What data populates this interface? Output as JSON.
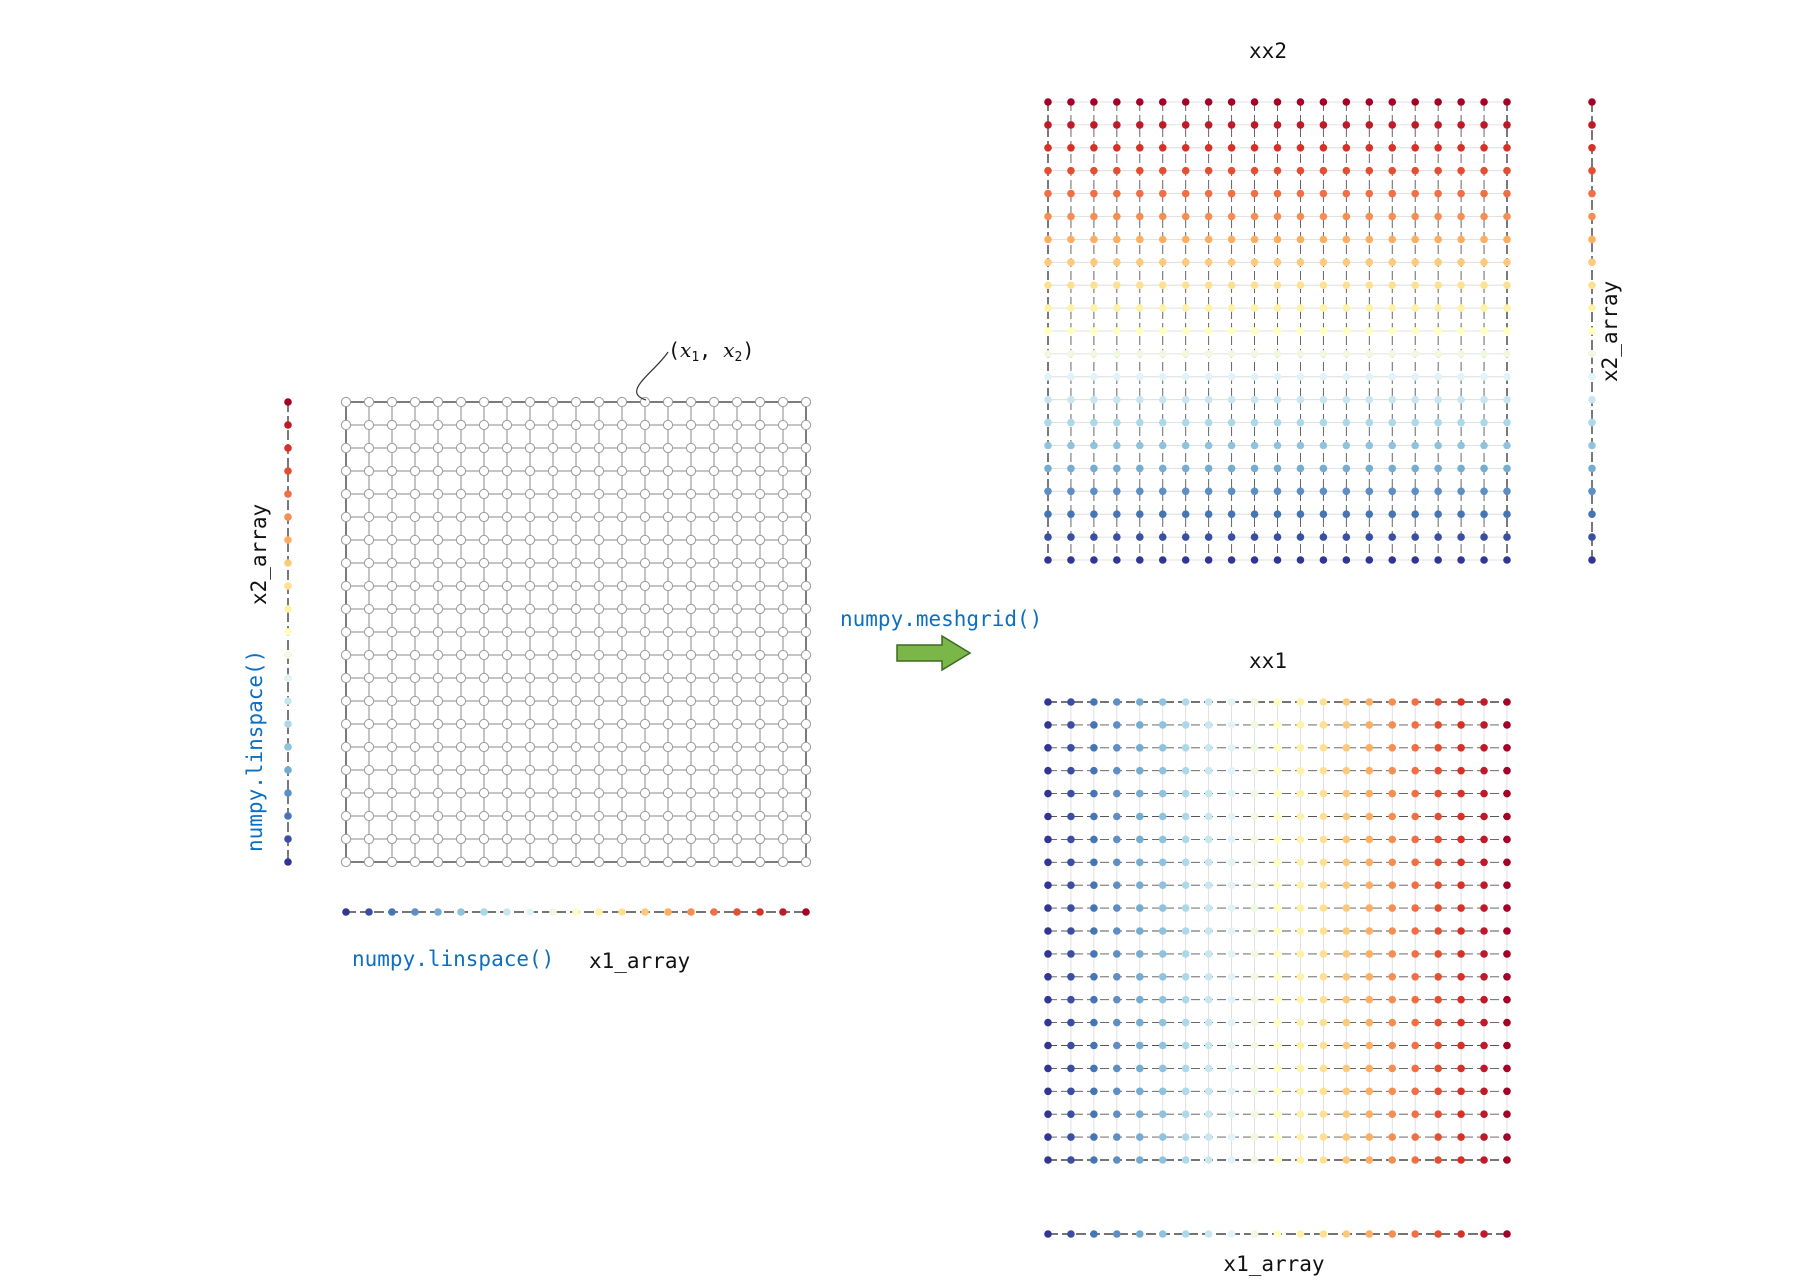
{
  "labels": {
    "x2_array_left": "x2_array",
    "linspace_left": "numpy.linspace()",
    "point_label_open": "(",
    "point_label_x": "x",
    "point_label_sub1": "1",
    "point_label_comma": ",",
    "point_label_sub2": "2",
    "point_label_close": ")",
    "linspace_bottom": "numpy.linspace()",
    "x1_array_bottom_left": "x1_array",
    "meshgrid": "numpy.meshgrid()",
    "xx2_title": "xx2",
    "xx1_title": "xx1",
    "x2_array_right": "x2_array",
    "x1_array_bottom_right": "x1_array"
  },
  "grid": {
    "columns": 21,
    "rows": 21
  },
  "colors": {
    "palette": [
      "#313695",
      "#3a4fa3",
      "#4575b4",
      "#5e8ec3",
      "#74add1",
      "#8fc3dd",
      "#abd9e9",
      "#c7e6f0",
      "#e0f3f8",
      "#f0f8e0",
      "#ffffbf",
      "#fff1a8",
      "#fee090",
      "#fdc97a",
      "#fdae61",
      "#f88d52",
      "#f46d43",
      "#e34f32",
      "#d73027",
      "#be1a2a",
      "#a50026"
    ],
    "hollow_marker_stroke": "#9a9a9a",
    "grid_line": "#888888",
    "arrow_fill": "#7ab648",
    "arrow_stroke": "#3d6b21"
  }
}
